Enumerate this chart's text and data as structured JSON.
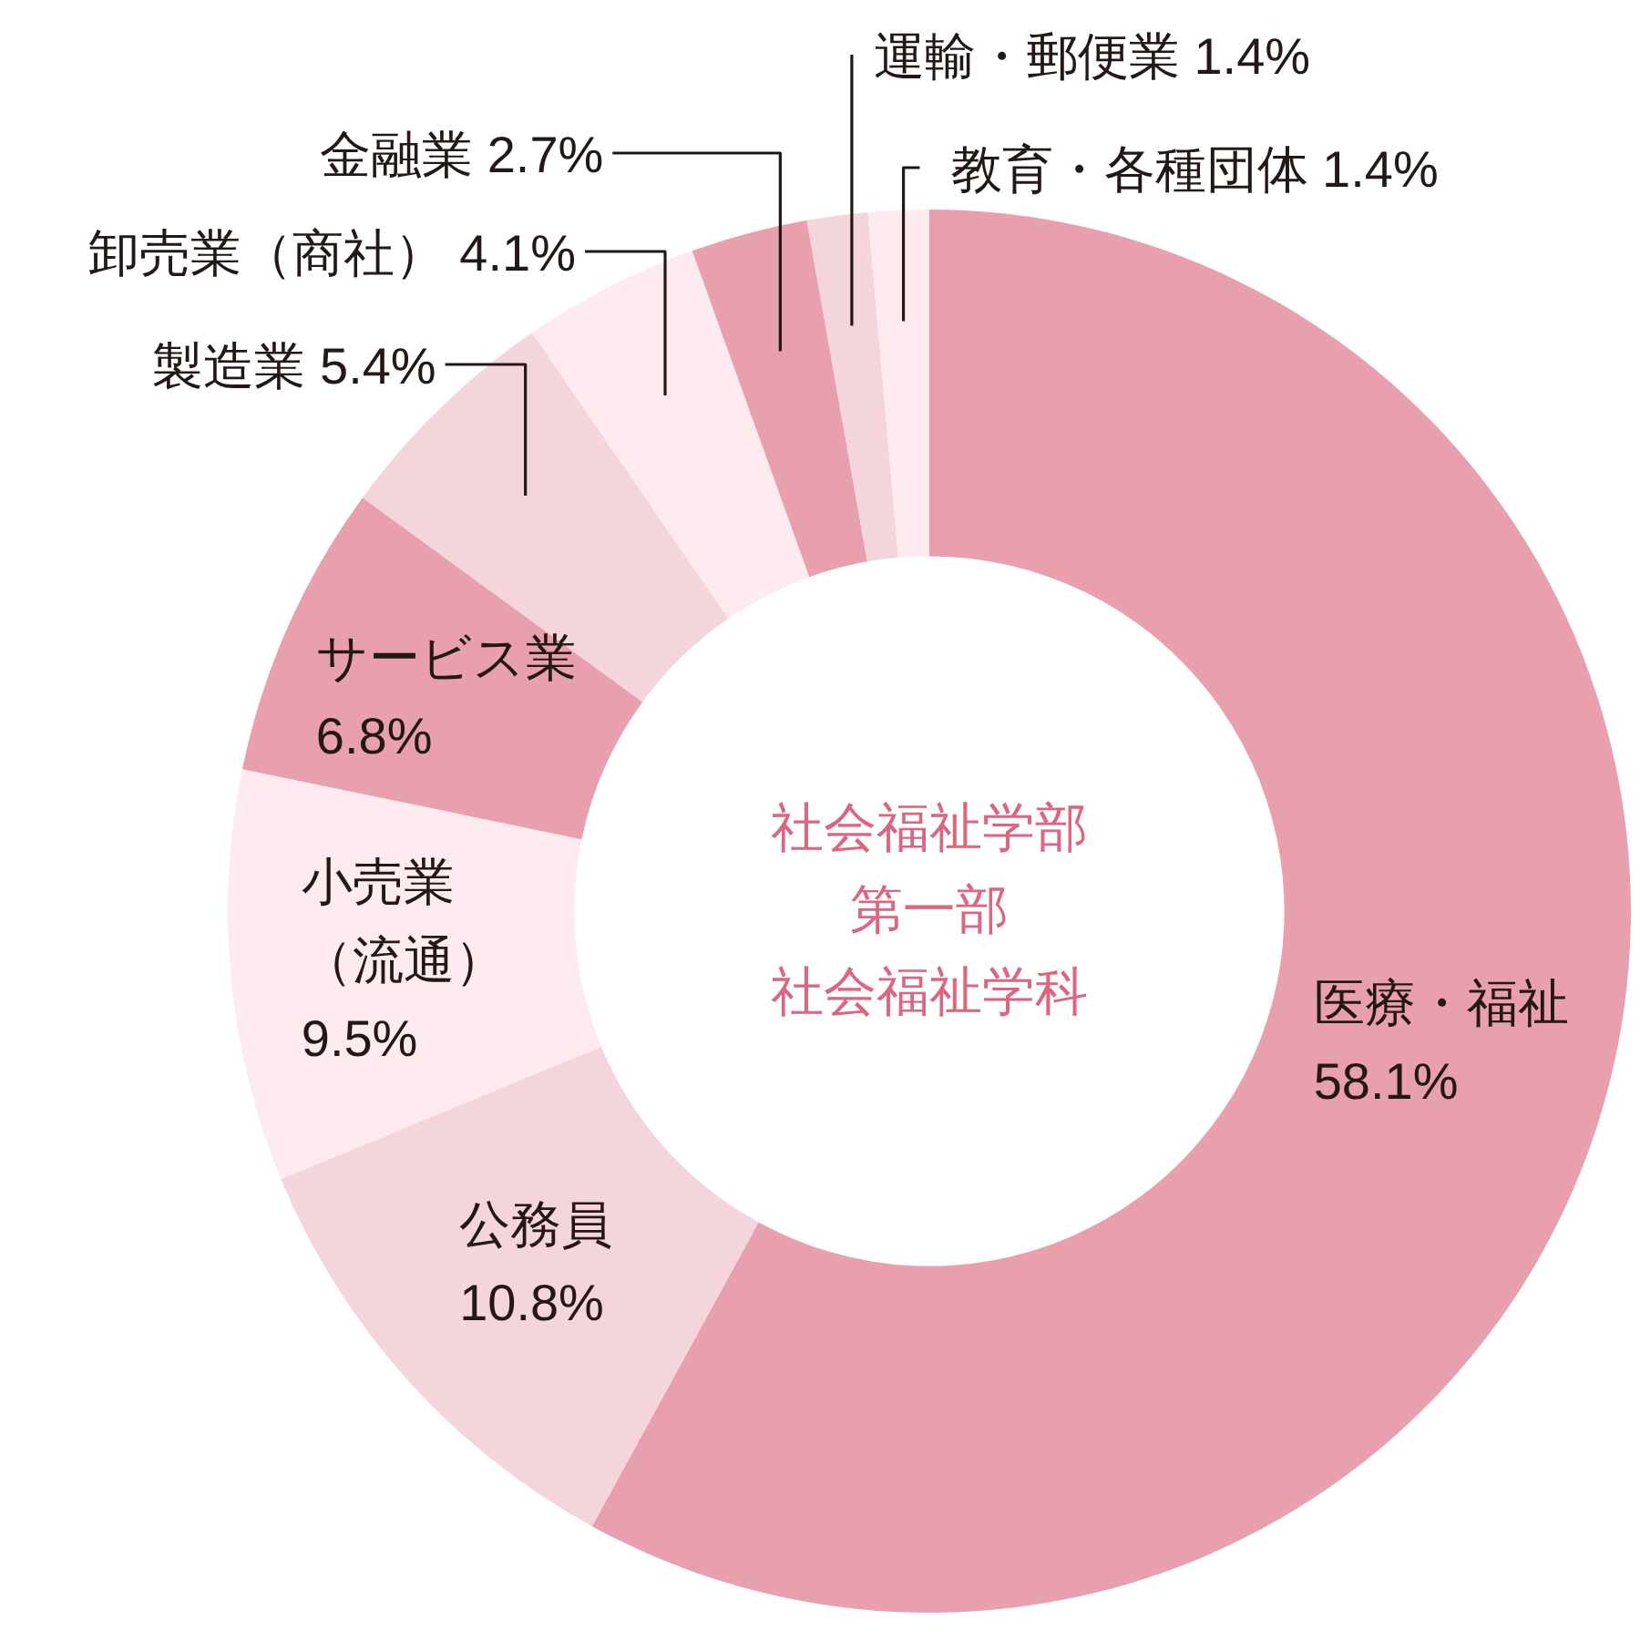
{
  "chart_data": {
    "type": "donut",
    "title": "社会福祉学部第一部",
    "subtitle": "社会福祉学科",
    "categories": [
      "医療・福祉",
      "公務員",
      "小売業（流通）",
      "サービス業",
      "製造業",
      "卸売業（商社）",
      "金融業",
      "運輸・郵便業",
      "教育・各種団体"
    ],
    "values": [
      58.1,
      10.8,
      9.5,
      6.8,
      5.4,
      4.1,
      2.7,
      1.4,
      1.4
    ],
    "value_labels": [
      "58.1%",
      "10.8%",
      "9.5%",
      "6.8%",
      "5.4%",
      "4.1%",
      "2.7%",
      "1.4%",
      "1.4%"
    ],
    "colors": [
      "#e89fae",
      "#f5d5dc",
      "#fdebef",
      "#e89fae",
      "#f5d5dc",
      "#fdebef",
      "#e89fae",
      "#f5d5dc",
      "#fdebef"
    ]
  }
}
